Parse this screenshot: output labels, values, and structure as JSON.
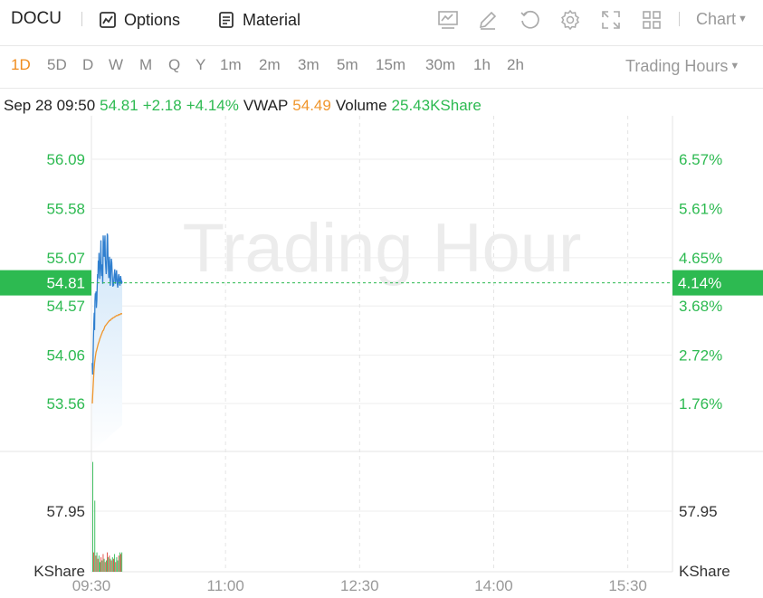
{
  "toolbar": {
    "ticker": "DOCU",
    "options_label": "Options",
    "material_label": "Material",
    "icons": [
      "chart-type-icon",
      "draw-icon",
      "undo-icon",
      "settings-icon",
      "fullscreen-icon",
      "layout-grid-icon"
    ],
    "chart_menu_label": "Chart"
  },
  "periods": [
    "1D",
    "5D",
    "D",
    "W",
    "M",
    "Q",
    "Y",
    "1m",
    "2m",
    "3m",
    "5m",
    "15m",
    "30m",
    "1h",
    "2h"
  ],
  "active_period": "1D",
  "trading_hours_label": "Trading Hours",
  "info": {
    "datetime": "Sep 28 09:50",
    "price": "54.81",
    "change": "+2.18",
    "change_pct": "+4.14%",
    "vwap_label": "VWAP",
    "vwap": "54.49",
    "volume_label": "Volume",
    "volume": "25.43KShare"
  },
  "colors": {
    "up": "#2dba51",
    "down": "#e0463c",
    "price_line": "#2f7fcf",
    "vwap_line": "#f0962c",
    "accent": "#f08c1e"
  },
  "watermark": "Trading Hour",
  "chart_data": {
    "type": "line",
    "price_axis_left": [
      "56.09",
      "55.58",
      "55.07",
      "54.57",
      "54.06",
      "53.56"
    ],
    "price_axis_right": [
      "6.57%",
      "5.61%",
      "4.65%",
      "3.68%",
      "2.72%",
      "1.76%"
    ],
    "current_price_tag": "54.81",
    "current_pct_tag": "4.14%",
    "volume_axis_left": "57.95",
    "volume_axis_right": "57.95",
    "volume_unit_left": "KShare",
    "volume_unit_right": "KShare",
    "x_ticks": [
      "09:30",
      "11:00",
      "12:30",
      "14:00",
      "15:30"
    ],
    "ylim": [
      53.0,
      56.6
    ],
    "price_series": [
      {
        "t": 0,
        "v": 53.98
      },
      {
        "t": 0.5,
        "v": 53.86
      },
      {
        "t": 1,
        "v": 54.02
      },
      {
        "t": 1.5,
        "v": 54.22
      },
      {
        "t": 2,
        "v": 54.4
      },
      {
        "t": 2.5,
        "v": 54.5
      },
      {
        "t": 3,
        "v": 54.32
      },
      {
        "t": 3.5,
        "v": 54.62
      },
      {
        "t": 4,
        "v": 54.7
      },
      {
        "t": 4.5,
        "v": 54.68
      },
      {
        "t": 5,
        "v": 54.72
      },
      {
        "t": 5.5,
        "v": 54.55
      },
      {
        "t": 6,
        "v": 54.63
      },
      {
        "t": 6.5,
        "v": 54.78
      },
      {
        "t": 7,
        "v": 54.9
      },
      {
        "t": 7.5,
        "v": 54.86
      },
      {
        "t": 8,
        "v": 55.04
      },
      {
        "t": 8.5,
        "v": 54.96
      },
      {
        "t": 9,
        "v": 55.12
      },
      {
        "t": 9.5,
        "v": 54.94
      },
      {
        "t": 10,
        "v": 54.85
      },
      {
        "t": 10.5,
        "v": 54.96
      },
      {
        "t": 11,
        "v": 55.07
      },
      {
        "t": 11.5,
        "v": 55.25
      },
      {
        "t": 12,
        "v": 54.98
      },
      {
        "t": 12.5,
        "v": 54.88
      },
      {
        "t": 13,
        "v": 55.0
      },
      {
        "t": 13.5,
        "v": 54.92
      },
      {
        "t": 14,
        "v": 54.8
      },
      {
        "t": 14.5,
        "v": 55.3
      },
      {
        "t": 15,
        "v": 55.22
      },
      {
        "t": 15.5,
        "v": 55.14
      },
      {
        "t": 16,
        "v": 55.08
      },
      {
        "t": 16.5,
        "v": 55.22
      },
      {
        "t": 17,
        "v": 55.3
      },
      {
        "t": 17.5,
        "v": 55.05
      },
      {
        "t": 18,
        "v": 54.98
      },
      {
        "t": 18.5,
        "v": 54.9
      },
      {
        "t": 19,
        "v": 54.95
      },
      {
        "t": 19.5,
        "v": 55.15
      },
      {
        "t": 20,
        "v": 55.32
      },
      {
        "t": 20.5,
        "v": 55.3
      },
      {
        "t": 21,
        "v": 55.08
      },
      {
        "t": 21.5,
        "v": 54.98
      },
      {
        "t": 22,
        "v": 54.86
      },
      {
        "t": 22.5,
        "v": 54.98
      },
      {
        "t": 23,
        "v": 55.08
      },
      {
        "t": 23.5,
        "v": 54.95
      },
      {
        "t": 24,
        "v": 54.78
      },
      {
        "t": 24.5,
        "v": 54.86
      },
      {
        "t": 25,
        "v": 54.98
      },
      {
        "t": 25.5,
        "v": 55.06
      },
      {
        "t": 26,
        "v": 55.02
      },
      {
        "t": 26.5,
        "v": 54.92
      },
      {
        "t": 27,
        "v": 54.85
      },
      {
        "t": 27.5,
        "v": 54.77
      },
      {
        "t": 28,
        "v": 54.82
      },
      {
        "t": 28.5,
        "v": 54.78
      },
      {
        "t": 29,
        "v": 54.86
      },
      {
        "t": 29.5,
        "v": 54.9
      },
      {
        "t": 30,
        "v": 54.95
      },
      {
        "t": 30.5,
        "v": 54.88
      },
      {
        "t": 31,
        "v": 54.8
      },
      {
        "t": 31.5,
        "v": 54.84
      },
      {
        "t": 32,
        "v": 54.9
      },
      {
        "t": 32.5,
        "v": 54.94
      },
      {
        "t": 33,
        "v": 54.86
      },
      {
        "t": 33.5,
        "v": 54.8
      },
      {
        "t": 34,
        "v": 54.76
      },
      {
        "t": 34.5,
        "v": 54.82
      },
      {
        "t": 35,
        "v": 54.88
      },
      {
        "t": 35.5,
        "v": 54.9
      },
      {
        "t": 36,
        "v": 54.86
      },
      {
        "t": 36.5,
        "v": 54.8
      },
      {
        "t": 37,
        "v": 54.78
      },
      {
        "t": 37.5,
        "v": 54.84
      },
      {
        "t": 38,
        "v": 54.88
      },
      {
        "t": 38.5,
        "v": 54.84
      },
      {
        "t": 39,
        "v": 54.8
      },
      {
        "t": 39.5,
        "v": 54.82
      },
      {
        "t": 40,
        "v": 54.81
      }
    ],
    "vwap_series": [
      {
        "t": 0,
        "v": 53.56
      },
      {
        "t": 1,
        "v": 53.72
      },
      {
        "t": 2,
        "v": 53.88
      },
      {
        "t": 3,
        "v": 53.98
      },
      {
        "t": 4,
        "v": 54.04
      },
      {
        "t": 5,
        "v": 54.09
      },
      {
        "t": 6,
        "v": 54.12
      },
      {
        "t": 7,
        "v": 54.15
      },
      {
        "t": 8,
        "v": 54.18
      },
      {
        "t": 9,
        "v": 54.2
      },
      {
        "t": 10,
        "v": 54.23
      },
      {
        "t": 11,
        "v": 54.25
      },
      {
        "t": 12,
        "v": 54.27
      },
      {
        "t": 13,
        "v": 54.29
      },
      {
        "t": 14,
        "v": 54.31
      },
      {
        "t": 15,
        "v": 54.32
      },
      {
        "t": 16,
        "v": 54.34
      },
      {
        "t": 17,
        "v": 54.36
      },
      {
        "t": 18,
        "v": 54.37
      },
      {
        "t": 19,
        "v": 54.38
      },
      {
        "t": 20,
        "v": 54.39
      },
      {
        "t": 21,
        "v": 54.4
      },
      {
        "t": 22,
        "v": 54.41
      },
      {
        "t": 23,
        "v": 54.42
      },
      {
        "t": 24,
        "v": 54.42
      },
      {
        "t": 25,
        "v": 54.43
      },
      {
        "t": 26,
        "v": 54.44
      },
      {
        "t": 27,
        "v": 54.44
      },
      {
        "t": 28,
        "v": 54.45
      },
      {
        "t": 29,
        "v": 54.45
      },
      {
        "t": 30,
        "v": 54.46
      },
      {
        "t": 31,
        "v": 54.46
      },
      {
        "t": 32,
        "v": 54.47
      },
      {
        "t": 33,
        "v": 54.47
      },
      {
        "t": 34,
        "v": 54.47
      },
      {
        "t": 35,
        "v": 54.48
      },
      {
        "t": 36,
        "v": 54.48
      },
      {
        "t": 37,
        "v": 54.48
      },
      {
        "t": 38,
        "v": 54.49
      },
      {
        "t": 39,
        "v": 54.49
      },
      {
        "t": 40,
        "v": 54.49
      }
    ],
    "volume_max": 70,
    "volume_bars": [
      {
        "v": 68,
        "up": true
      },
      {
        "v": 12,
        "up": false
      },
      {
        "v": 44,
        "up": true
      },
      {
        "v": 10,
        "up": false
      },
      {
        "v": 12,
        "up": true
      },
      {
        "v": 8,
        "up": false
      },
      {
        "v": 10,
        "up": true
      },
      {
        "v": 6,
        "up": true
      },
      {
        "v": 9,
        "up": false
      },
      {
        "v": 7,
        "up": true
      },
      {
        "v": 11,
        "up": false
      },
      {
        "v": 8,
        "up": true
      },
      {
        "v": 6,
        "up": false
      },
      {
        "v": 7,
        "up": true
      },
      {
        "v": 12,
        "up": false
      },
      {
        "v": 9,
        "up": true
      },
      {
        "v": 10,
        "up": false
      },
      {
        "v": 8,
        "up": true
      },
      {
        "v": 7,
        "up": false
      },
      {
        "v": 9,
        "up": true
      },
      {
        "v": 8,
        "up": false
      },
      {
        "v": 11,
        "up": true
      },
      {
        "v": 6,
        "up": false
      },
      {
        "v": 9,
        "up": true
      },
      {
        "v": 7,
        "up": true
      },
      {
        "v": 10,
        "up": false
      },
      {
        "v": 12,
        "up": true
      },
      {
        "v": 11,
        "up": false
      },
      {
        "v": 12,
        "up": true
      }
    ]
  }
}
